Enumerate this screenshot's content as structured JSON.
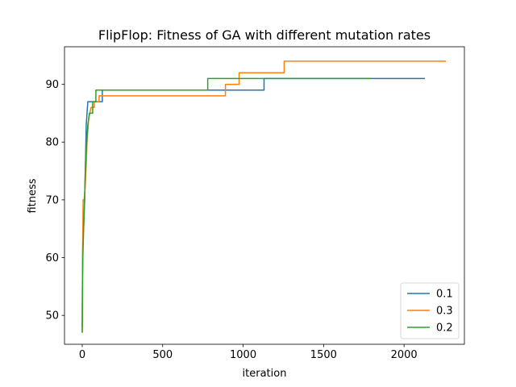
{
  "chart_data": {
    "type": "line",
    "title": "FlipFlop: Fitness of GA with different mutation rates",
    "xlabel": "iteration",
    "ylabel": "fitness",
    "xlim": [
      -110,
      2375
    ],
    "ylim": [
      45,
      96.5
    ],
    "xticks": [
      0,
      500,
      1000,
      1500,
      2000
    ],
    "yticks": [
      50,
      60,
      70,
      80,
      90
    ],
    "grid": false,
    "legend_position": "lower right",
    "series": [
      {
        "name": "0.1",
        "color": "#1f77b4",
        "points": [
          [
            0,
            48
          ],
          [
            2,
            58
          ],
          [
            4,
            62
          ],
          [
            6,
            64
          ],
          [
            10,
            66
          ],
          [
            15,
            70
          ],
          [
            20,
            76
          ],
          [
            25,
            83
          ],
          [
            35,
            87
          ],
          [
            125,
            87
          ],
          [
            125,
            89
          ],
          [
            1130,
            89
          ],
          [
            1130,
            91
          ],
          [
            2130,
            91
          ]
        ]
      },
      {
        "name": "0.3",
        "color": "#ff7f0e",
        "points": [
          [
            0,
            47
          ],
          [
            2,
            60
          ],
          [
            4,
            65
          ],
          [
            6,
            70
          ],
          [
            12,
            70
          ],
          [
            18,
            72
          ],
          [
            25,
            76
          ],
          [
            30,
            80
          ],
          [
            40,
            84
          ],
          [
            55,
            86
          ],
          [
            75,
            86
          ],
          [
            75,
            87
          ],
          [
            105,
            87
          ],
          [
            105,
            88
          ],
          [
            890,
            88
          ],
          [
            890,
            90
          ],
          [
            975,
            90
          ],
          [
            975,
            92
          ],
          [
            1255,
            92
          ],
          [
            1255,
            94
          ],
          [
            2260,
            94
          ]
        ]
      },
      {
        "name": "0.2",
        "color": "#2ca02c",
        "points": [
          [
            0,
            47
          ],
          [
            2,
            55
          ],
          [
            4,
            60
          ],
          [
            6,
            62
          ],
          [
            10,
            66
          ],
          [
            15,
            70
          ],
          [
            20,
            76
          ],
          [
            28,
            80
          ],
          [
            35,
            83
          ],
          [
            45,
            85
          ],
          [
            65,
            85
          ],
          [
            65,
            87
          ],
          [
            85,
            87
          ],
          [
            85,
            89
          ],
          [
            780,
            89
          ],
          [
            780,
            91
          ],
          [
            1790,
            91
          ]
        ]
      }
    ]
  }
}
